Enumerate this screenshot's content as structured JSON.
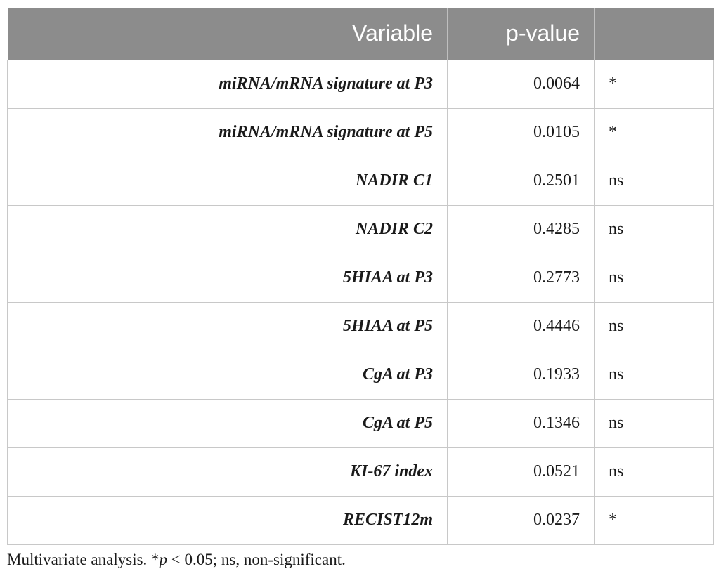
{
  "table": {
    "headers": {
      "variable": "Variable",
      "pvalue": "p-value",
      "significance": ""
    },
    "rows": [
      {
        "variable": "miRNA/mRNA signature at P3",
        "pvalue": "0.0064",
        "significance": "*"
      },
      {
        "variable": "miRNA/mRNA signature at P5",
        "pvalue": "0.0105",
        "significance": "*"
      },
      {
        "variable": "NADIR C1",
        "pvalue": "0.2501",
        "significance": "ns"
      },
      {
        "variable": "NADIR C2",
        "pvalue": "0.4285",
        "significance": "ns"
      },
      {
        "variable": "5HIAA at P3",
        "pvalue": "0.2773",
        "significance": "ns"
      },
      {
        "variable": "5HIAA at P5",
        "pvalue": "0.4446",
        "significance": "ns"
      },
      {
        "variable": "CgA at P3",
        "pvalue": "0.1933",
        "significance": "ns"
      },
      {
        "variable": "CgA at P5",
        "pvalue": "0.1346",
        "significance": "ns"
      },
      {
        "variable": "KI-67 index",
        "pvalue": "0.0521",
        "significance": "ns"
      },
      {
        "variable": "RECIST12m",
        "pvalue": "0.0237",
        "significance": "*"
      }
    ]
  },
  "footnote": {
    "prefix": "Multivariate analysis. *",
    "p_symbol": "p",
    "suffix": " < 0.05; ns, non-significant."
  },
  "colors": {
    "header_background": "#8c8c8c",
    "header_text": "#ffffff",
    "grid_lines": "#c8c8c8"
  }
}
